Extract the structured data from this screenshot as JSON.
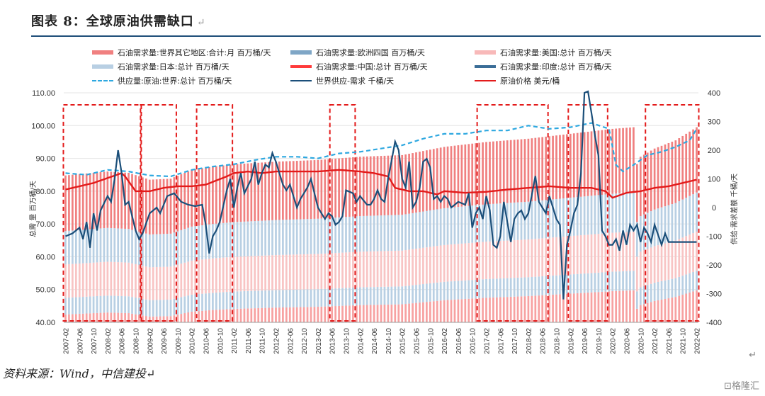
{
  "title": "图表 8：全球原油供需缺口",
  "title_mark": "↵",
  "source": "资料来源：Wind，中信建投↵",
  "watermark": "⊡格隆汇",
  "corner_mark": "↵",
  "legend": {
    "items": [
      {
        "label": "石油需求量:世界其它地区:合计:月 百万桶/天",
        "color": "#f08080",
        "style": "bar"
      },
      {
        "label": "石油需求量:欧洲四国 百万桶/天",
        "color": "#7fa6c6",
        "style": "bar"
      },
      {
        "label": "石油需求量:美国:总计 百万桶/天",
        "color": "#f8b9b9",
        "style": "bar"
      },
      {
        "label": "石油需求量:日本:总计 百万桶/天",
        "color": "#b8cfe3",
        "style": "bar"
      },
      {
        "label": "石油需求量:中国:总计 百万桶/天",
        "color": "#ff3b3b",
        "style": "bar"
      },
      {
        "label": "石油需求量:印度:总计 百万桶/天",
        "color": "#3a6d97",
        "style": "bar"
      },
      {
        "label": "供应量:原油:世界:总计 百万桶/天",
        "color": "#2ea8e0",
        "style": "dash"
      },
      {
        "label": "世界供应-需求 千桶/天",
        "color": "#1b4f7a",
        "style": "line"
      },
      {
        "label": "原油价格 美元/桶",
        "color": "#e31b1b",
        "style": "line"
      }
    ]
  },
  "chart_data": {
    "type": "bar",
    "ylabel_left": "总需 量 百万桶/天",
    "ylabel_right": "供给-需求差额 千桶/天",
    "ylim_left": [
      40,
      110
    ],
    "ylim_right": [
      -400,
      400
    ],
    "left_ticks": [
      "40.00",
      "50.00",
      "60.00",
      "70.00",
      "80.00",
      "90.00",
      "100.00",
      "110.00"
    ],
    "right_ticks": [
      "-400",
      "-300",
      "-200",
      "-100",
      "0",
      "100",
      "200",
      "300",
      "400"
    ],
    "x_ticks": [
      "2007-02",
      "2007-06",
      "2007-10",
      "2008-02",
      "2008-06",
      "2008-10",
      "2009-02",
      "2009-06",
      "2009-10",
      "2010-02",
      "2010-06",
      "2010-10",
      "2011-02",
      "2011-06",
      "2011-10",
      "2012-02",
      "2012-06",
      "2012-10",
      "2013-02",
      "2013-06",
      "2013-10",
      "2014-02",
      "2014-06",
      "2014-10",
      "2015-02",
      "2015-06",
      "2015-10",
      "2016-02",
      "2016-06",
      "2016-10",
      "2017-02",
      "2017-06",
      "2017-10",
      "2018-02",
      "2018-06",
      "2018-10",
      "2019-02",
      "2019-06",
      "2019-10",
      "2020-02",
      "2020-06",
      "2020-10",
      "2021-02",
      "2021-06",
      "2021-10",
      "2022-02"
    ],
    "start": "2007-02",
    "months": 181,
    "total_demand": [
      [
        0,
        84.8
      ],
      [
        12,
        86.0
      ],
      [
        18,
        85.6
      ],
      [
        24,
        83.5
      ],
      [
        30,
        83.8
      ],
      [
        36,
        86.5
      ],
      [
        42,
        87.5
      ],
      [
        48,
        88.2
      ],
      [
        60,
        89.0
      ],
      [
        72,
        89.5
      ],
      [
        84,
        90.5
      ],
      [
        96,
        91.0
      ],
      [
        108,
        93.5
      ],
      [
        120,
        95.0
      ],
      [
        132,
        96.0
      ],
      [
        144,
        97.5
      ],
      [
        156,
        99.0
      ],
      [
        162,
        99.5
      ],
      [
        156,
        99.0
      ],
      [
        158,
        99.2
      ],
      [
        159,
        88.0
      ],
      [
        160,
        82.0
      ],
      [
        162,
        86.0
      ],
      [
        164,
        90.5
      ],
      [
        168,
        93.0
      ],
      [
        174,
        95.5
      ],
      [
        180,
        99.5
      ]
    ],
    "supply": [
      [
        0,
        85.5
      ],
      [
        6,
        85.0
      ],
      [
        12,
        86.5
      ],
      [
        18,
        86.0
      ],
      [
        24,
        84.8
      ],
      [
        30,
        84.5
      ],
      [
        36,
        86.5
      ],
      [
        42,
        87.5
      ],
      [
        48,
        88.2
      ],
      [
        54,
        89.5
      ],
      [
        60,
        90.5
      ],
      [
        66,
        90.5
      ],
      [
        72,
        90.0
      ],
      [
        78,
        91.5
      ],
      [
        84,
        92.0
      ],
      [
        90,
        93.0
      ],
      [
        96,
        94.0
      ],
      [
        102,
        96.0
      ],
      [
        108,
        97.5
      ],
      [
        114,
        97.5
      ],
      [
        120,
        98.5
      ],
      [
        126,
        98.5
      ],
      [
        132,
        100.0
      ],
      [
        138,
        99.0
      ],
      [
        144,
        99.5
      ],
      [
        150,
        100.8
      ],
      [
        155,
        99.0
      ],
      [
        157,
        88.0
      ],
      [
        159,
        86.0
      ],
      [
        162,
        88.0
      ],
      [
        166,
        91.0
      ],
      [
        170,
        92.0
      ],
      [
        174,
        93.5
      ],
      [
        178,
        95.5
      ],
      [
        180,
        99.0
      ]
    ],
    "oil_price": [
      [
        0,
        80.5
      ],
      [
        4,
        81.5
      ],
      [
        8,
        82.5
      ],
      [
        12,
        84.0
      ],
      [
        16,
        85.5
      ],
      [
        17,
        84.5
      ],
      [
        20,
        80.0
      ],
      [
        24,
        80.0
      ],
      [
        28,
        81.0
      ],
      [
        32,
        81.5
      ],
      [
        36,
        81.5
      ],
      [
        40,
        82.0
      ],
      [
        46,
        84.5
      ],
      [
        48,
        85.5
      ],
      [
        52,
        86.0
      ],
      [
        56,
        85.5
      ],
      [
        60,
        86.0
      ],
      [
        66,
        86.0
      ],
      [
        72,
        86.0
      ],
      [
        78,
        86.5
      ],
      [
        84,
        86.0
      ],
      [
        88,
        85.5
      ],
      [
        92,
        84.5
      ],
      [
        94,
        81.0
      ],
      [
        98,
        80.0
      ],
      [
        102,
        80.0
      ],
      [
        106,
        79.0
      ],
      [
        108,
        80.0
      ],
      [
        114,
        79.5
      ],
      [
        120,
        79.8
      ],
      [
        126,
        80.5
      ],
      [
        132,
        81.0
      ],
      [
        138,
        81.5
      ],
      [
        144,
        81.0
      ],
      [
        150,
        81.0
      ],
      [
        154,
        80.0
      ],
      [
        156,
        78.0
      ],
      [
        160,
        79.5
      ],
      [
        164,
        80.0
      ],
      [
        168,
        81.0
      ],
      [
        172,
        81.5
      ],
      [
        176,
        82.5
      ],
      [
        180,
        83.5
      ]
    ],
    "balance": [
      [
        0,
        -100
      ],
      [
        2,
        -90
      ],
      [
        4,
        -70
      ],
      [
        5,
        -110
      ],
      [
        6,
        -50
      ],
      [
        7,
        -140
      ],
      [
        8,
        -20
      ],
      [
        9,
        -80
      ],
      [
        10,
        -10
      ],
      [
        12,
        40
      ],
      [
        13,
        20
      ],
      [
        14,
        100
      ],
      [
        15,
        200
      ],
      [
        16,
        120
      ],
      [
        17,
        10
      ],
      [
        18,
        20
      ],
      [
        20,
        -80
      ],
      [
        21,
        -110
      ],
      [
        22,
        -90
      ],
      [
        24,
        -20
      ],
      [
        26,
        0
      ],
      [
        27,
        -20
      ],
      [
        29,
        40
      ],
      [
        31,
        50
      ],
      [
        33,
        20
      ],
      [
        35,
        10
      ],
      [
        37,
        5
      ],
      [
        39,
        10
      ],
      [
        40,
        -60
      ],
      [
        41,
        -160
      ],
      [
        42,
        -100
      ],
      [
        43,
        -80
      ],
      [
        44,
        -50
      ],
      [
        46,
        60
      ],
      [
        47,
        100
      ],
      [
        48,
        0
      ],
      [
        49,
        70
      ],
      [
        50,
        120
      ],
      [
        51,
        50
      ],
      [
        53,
        100
      ],
      [
        54,
        160
      ],
      [
        55,
        80
      ],
      [
        56,
        120
      ],
      [
        57,
        150
      ],
      [
        58,
        140
      ],
      [
        59,
        190
      ],
      [
        60,
        160
      ],
      [
        62,
        80
      ],
      [
        63,
        60
      ],
      [
        64,
        80
      ],
      [
        66,
        0
      ],
      [
        67,
        30
      ],
      [
        68,
        50
      ],
      [
        69,
        70
      ],
      [
        70,
        100
      ],
      [
        72,
        0
      ],
      [
        73,
        -20
      ],
      [
        74,
        -40
      ],
      [
        75,
        -20
      ],
      [
        76,
        -30
      ],
      [
        77,
        -60
      ],
      [
        78,
        -50
      ],
      [
        79,
        -30
      ],
      [
        80,
        60
      ],
      [
        82,
        50
      ],
      [
        83,
        20
      ],
      [
        84,
        40
      ],
      [
        86,
        10
      ],
      [
        87,
        10
      ],
      [
        88,
        30
      ],
      [
        89,
        60
      ],
      [
        90,
        30
      ],
      [
        91,
        20
      ],
      [
        92,
        100
      ],
      [
        94,
        230
      ],
      [
        95,
        200
      ],
      [
        96,
        100
      ],
      [
        97,
        70
      ],
      [
        98,
        160
      ],
      [
        99,
        0
      ],
      [
        100,
        20
      ],
      [
        101,
        70
      ],
      [
        102,
        160
      ],
      [
        103,
        170
      ],
      [
        104,
        140
      ],
      [
        105,
        30
      ],
      [
        106,
        40
      ],
      [
        107,
        20
      ],
      [
        108,
        40
      ],
      [
        109,
        30
      ],
      [
        110,
        0
      ],
      [
        112,
        20
      ],
      [
        114,
        10
      ],
      [
        115,
        50
      ],
      [
        116,
        -70
      ],
      [
        117,
        -20
      ],
      [
        118,
        0
      ],
      [
        119,
        -40
      ],
      [
        120,
        40
      ],
      [
        121,
        -10
      ],
      [
        122,
        -130
      ],
      [
        123,
        -140
      ],
      [
        124,
        -100
      ],
      [
        125,
        20
      ],
      [
        126,
        -50
      ],
      [
        127,
        -120
      ],
      [
        128,
        -40
      ],
      [
        129,
        -20
      ],
      [
        130,
        -10
      ],
      [
        131,
        -40
      ],
      [
        132,
        -20
      ],
      [
        134,
        110
      ],
      [
        135,
        20
      ],
      [
        137,
        -20
      ],
      [
        138,
        40
      ],
      [
        140,
        -40
      ],
      [
        141,
        -60
      ],
      [
        142,
        -320
      ],
      [
        143,
        -130
      ],
      [
        144,
        -80
      ],
      [
        145,
        -20
      ],
      [
        146,
        10
      ],
      [
        147,
        120
      ],
      [
        148,
        400
      ],
      [
        149,
        430
      ],
      [
        150,
        330
      ],
      [
        151,
        250
      ],
      [
        152,
        180
      ],
      [
        153,
        -80
      ],
      [
        154,
        -100
      ],
      [
        155,
        -130
      ],
      [
        156,
        -130
      ],
      [
        157,
        -110
      ],
      [
        158,
        -150
      ],
      [
        159,
        -80
      ],
      [
        160,
        -130
      ],
      [
        161,
        -60
      ],
      [
        162,
        -80
      ],
      [
        163,
        -60
      ],
      [
        164,
        -120
      ],
      [
        165,
        -70
      ],
      [
        166,
        -90
      ],
      [
        167,
        -120
      ],
      [
        168,
        -60
      ],
      [
        170,
        -130
      ],
      [
        171,
        -90
      ],
      [
        172,
        -120
      ]
    ],
    "highlight_ranges": [
      [
        "2007-02",
        "2008-11"
      ],
      [
        "2008-12",
        "2009-09"
      ],
      [
        "2010-04",
        "2011-01"
      ],
      [
        "2013-06",
        "2013-12"
      ],
      [
        "2016-12",
        "2018-07"
      ],
      [
        "2019-02",
        "2019-12"
      ],
      [
        "2020-12",
        "2022-02"
      ]
    ]
  }
}
